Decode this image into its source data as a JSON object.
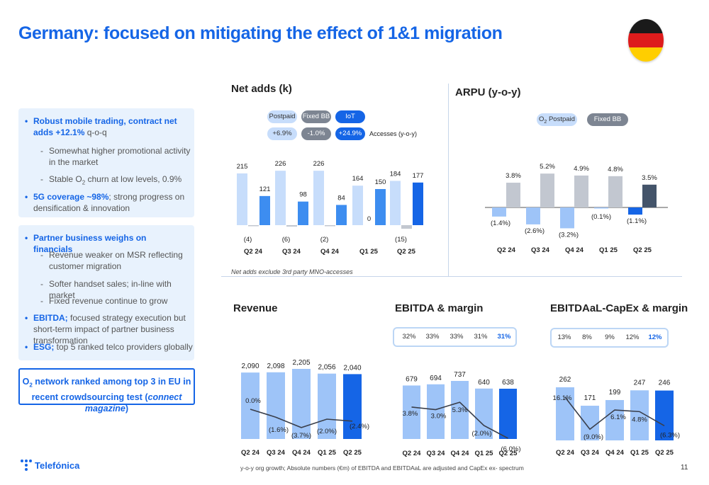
{
  "title": "Germany: focused on mitigating the effect of 1&1 migration",
  "flag_colors": [
    "#1a1a1a",
    "#dd1c1c",
    "#ffce00"
  ],
  "panel1": {
    "b1_bold": "Robust mobile trading, contract net adds +12.1%",
    "b1_rest": " q-o-q",
    "b1_s1": "Somewhat higher promotional activity in the market",
    "b1_s2_a": "Stable O",
    "b1_s2_sub": "2",
    "b1_s2_b": " churn at low levels, 0.9%",
    "b2_bold": "5G coverage ~98%",
    "b2_rest": "; strong progress on densification & innovation"
  },
  "panel2": {
    "b1_bold": "Partner business weighs on financials",
    "s1": "Revenue weaker on MSR reflecting customer migration",
    "s2": "Softer handset sales; in-line with market",
    "s3": "Fixed revenue continue to grow",
    "b2_bold": "EBITDA;",
    "b2_rest": " focused strategy execution but short-term impact of partner business transformation",
    "b3_bold": "ESG;",
    "b3_rest": " top 5 ranked telco providers globally"
  },
  "callout": {
    "a": "O",
    "sub": "2",
    "b": " network ranked among top 3 in EU in recent crowdsourcing test (",
    "em": "connect magazine",
    "c": ")"
  },
  "net_adds": {
    "title": "Net adds (k)",
    "legend": [
      "Postpaid",
      "Fixed BB",
      "IoT"
    ],
    "yoy": [
      "+6.9%",
      "-1.0%",
      "+24.9%"
    ],
    "yoy_label": "Accesses (y-o-y)",
    "note": "Net adds exclude 3rd party MNO-accesses"
  },
  "arpu": {
    "title": "ARPU (y-o-y)",
    "legend_a": "O",
    "legend_sub": "2",
    "legend_b": " Postpaid",
    "legend2": "Fixed BB"
  },
  "revenue": {
    "title": "Revenue"
  },
  "ebitda": {
    "title": "EBITDA & margin",
    "margins": [
      "32%",
      "33%",
      "33%",
      "31%",
      "31%"
    ]
  },
  "capex": {
    "title": "EBITDAaL-CapEx & margin",
    "margins": [
      "13%",
      "8%",
      "9%",
      "12%",
      "12%"
    ]
  },
  "footnote": "y-o-y org growth; Absolute numbers (€m) of EBITDA and EBITDAaL are adjusted and CapEx ex- spectrum",
  "logo": "Telefónica",
  "page": "11",
  "colors": {
    "accent": "#1565e6",
    "light_blue": "#c7ddfb",
    "mid_blue": "#3d8df0",
    "bar_blue": "#9ec4f8",
    "gray": "#c2c7d0",
    "dark_slate": "#44546a"
  },
  "chart_data": [
    {
      "type": "bar",
      "title": "Net adds (k)",
      "categories": [
        "Q2 24",
        "Q3 24",
        "Q4 24",
        "Q1 25",
        "Q2 25"
      ],
      "series": [
        {
          "name": "Postpaid",
          "values": [
            215,
            226,
            226,
            164,
            184
          ]
        },
        {
          "name": "Fixed BB",
          "values": [
            -4,
            -6,
            -2,
            0,
            -15
          ]
        },
        {
          "name": "IoT",
          "values": [
            121,
            98,
            84,
            150,
            177
          ]
        }
      ]
    },
    {
      "type": "bar",
      "title": "ARPU (y-o-y)",
      "categories": [
        "Q2 24",
        "Q3 24",
        "Q4 24",
        "Q1 25",
        "Q2 25"
      ],
      "series": [
        {
          "name": "O2 Postpaid",
          "values": [
            -1.4,
            -2.6,
            -3.2,
            -0.1,
            -1.1
          ]
        },
        {
          "name": "Fixed BB",
          "values": [
            3.8,
            5.2,
            4.9,
            4.8,
            3.5
          ]
        }
      ]
    },
    {
      "type": "bar",
      "title": "Revenue",
      "categories": [
        "Q2 24",
        "Q3 24",
        "Q4 24",
        "Q1 25",
        "Q2 25"
      ],
      "values": [
        2090,
        2098,
        2205,
        2056,
        2040
      ],
      "growth": [
        0.0,
        -1.6,
        -3.7,
        -2.0,
        -2.4
      ],
      "value_labels": [
        "2,090",
        "2,098",
        "2,205",
        "2,056",
        "2,040"
      ],
      "growth_labels": [
        "0.0%",
        "(1.6%)",
        "(3.7%)",
        "(2.0%)",
        "(2.4%)"
      ]
    },
    {
      "type": "bar",
      "title": "EBITDA & margin",
      "categories": [
        "Q2 24",
        "Q3 24",
        "Q4 24",
        "Q1 25",
        "Q2 25"
      ],
      "values": [
        679,
        694,
        737,
        640,
        638
      ],
      "growth": [
        3.8,
        3.0,
        5.3,
        -2.0,
        -6.0
      ],
      "value_labels": [
        "679",
        "694",
        "737",
        "640",
        "638"
      ],
      "growth_labels": [
        "3.8%",
        "3.0%",
        "5.3%",
        "(2.0%)",
        "(6.0%)"
      ]
    },
    {
      "type": "bar",
      "title": "EBITDAaL-CapEx & margin",
      "categories": [
        "Q2 24",
        "Q3 24",
        "Q4 24",
        "Q1 25",
        "Q2 25"
      ],
      "values": [
        262,
        171,
        199,
        247,
        246
      ],
      "growth": [
        16.1,
        -9.0,
        6.1,
        4.8,
        -6.3
      ],
      "value_labels": [
        "262",
        "171",
        "199",
        "247",
        "246"
      ],
      "growth_labels": [
        "16.1%",
        "(9.0%)",
        "6.1%",
        "4.8%",
        "(6.3%)"
      ]
    }
  ]
}
